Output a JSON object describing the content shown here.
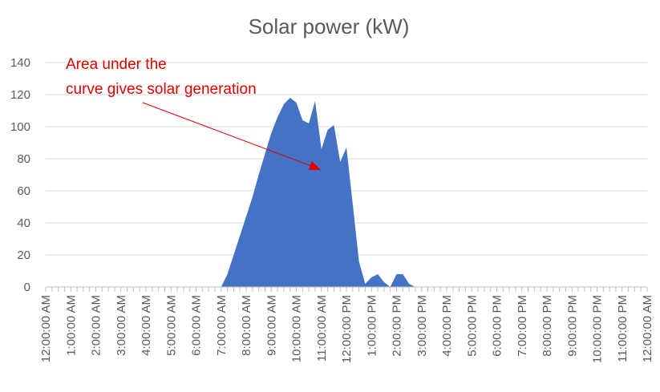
{
  "chart_data": {
    "type": "area",
    "title": "Solar power (kW)",
    "xlabel": "",
    "ylabel": "",
    "ylim": [
      0,
      140
    ],
    "yticks": [
      0,
      20,
      40,
      60,
      80,
      100,
      120,
      140
    ],
    "xlim_hours": [
      0,
      24
    ],
    "x_tick_labels": [
      "12:00:00 AM",
      "1:00:00 AM",
      "2:00:00 AM",
      "3:00:00 AM",
      "4:00:00 AM",
      "5:00:00 AM",
      "6:00:00 AM",
      "7:00:00 AM",
      "8:00:00 AM",
      "9:00:00 AM",
      "10:00:00 AM",
      "11:00:00 AM",
      "12:00:00 PM",
      "1:00:00 PM",
      "2:00:00 PM",
      "3:00:00 PM",
      "4:00:00 PM",
      "5:00:00 PM",
      "6:00:00 PM",
      "7:00:00 PM",
      "8:00:00 PM",
      "9:00:00 PM",
      "10:00:00 PM",
      "11:00:00 PM",
      "12:00:00 AM"
    ],
    "grid": true,
    "series": [
      {
        "color": "#4472c4",
        "x_hours": [
          0,
          7.0,
          7.25,
          7.5,
          7.75,
          8.0,
          8.25,
          8.5,
          8.75,
          9.0,
          9.25,
          9.5,
          9.75,
          10.0,
          10.25,
          10.5,
          10.75,
          11.0,
          11.25,
          11.5,
          11.75,
          12.0,
          12.25,
          12.5,
          12.75,
          13.0,
          13.25,
          13.5,
          13.75,
          14.0,
          14.25,
          14.5,
          14.75,
          15.0,
          15.25,
          15.5,
          15.75,
          16.0,
          24
        ],
        "values": [
          0,
          0,
          8,
          20,
          32,
          44,
          56,
          70,
          83,
          96,
          106,
          114,
          118,
          115,
          104,
          102,
          116,
          86,
          98,
          101,
          78,
          87,
          52,
          16,
          2,
          6,
          8,
          3,
          0,
          8,
          8,
          2,
          0,
          0,
          0,
          0,
          0,
          0,
          0
        ]
      }
    ],
    "annotation": {
      "lines": [
        "Area under the",
        "curve gives solar generation"
      ],
      "color": "#e00000"
    }
  }
}
